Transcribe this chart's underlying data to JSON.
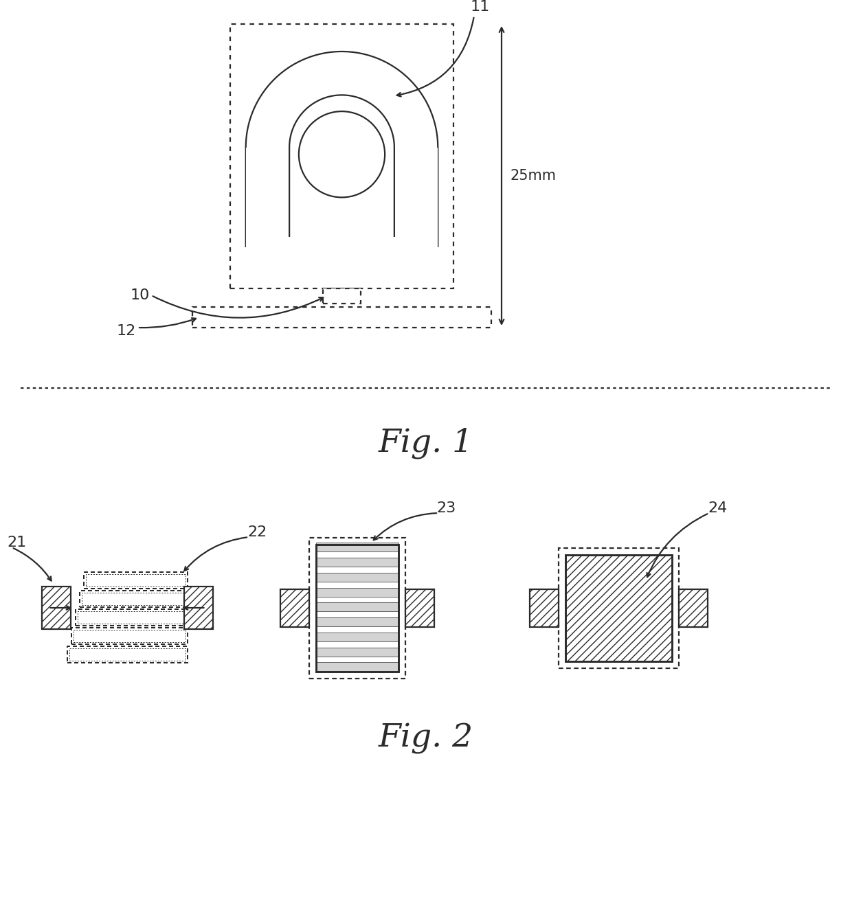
{
  "bg_color": "#ffffff",
  "lc": "#2a2a2a",
  "lw": 1.6,
  "fig1": {
    "caption": "Fig. 1",
    "label_10": "10",
    "label_11": "11",
    "label_12": "12",
    "dim_label": "25mm"
  },
  "fig2": {
    "caption": "Fig. 2",
    "label_21": "21",
    "label_22": "22",
    "label_23": "23",
    "label_24": "24"
  }
}
